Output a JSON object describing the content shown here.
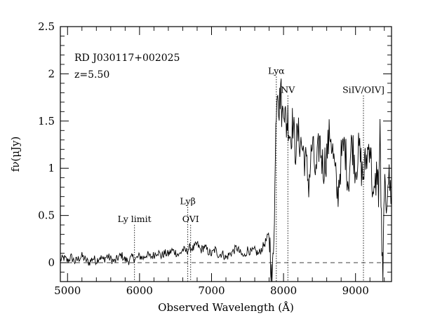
{
  "chart_data": {
    "type": "line",
    "title": "",
    "xlabel": "Observed Wavelength (Å)",
    "ylabel": "fν(μJy)",
    "xlim": [
      4900,
      9500
    ],
    "ylim": [
      -0.2,
      2.5
    ],
    "x_ticks": [
      5000,
      6000,
      7000,
      8000,
      9000
    ],
    "x_tick_labels": [
      "5000",
      "6000",
      "7000",
      "8000",
      "9000"
    ],
    "y_ticks": [
      0,
      0.5,
      1,
      1.5,
      2,
      2.5
    ],
    "y_tick_labels": [
      "0",
      "0.5",
      "1",
      "1.5",
      "2",
      "2.5"
    ],
    "grid": false,
    "annotations": [
      "RD J030117+002025",
      "z=5.50"
    ],
    "zero_level": 0,
    "spectral_lines": [
      {
        "label": "Ly limit",
        "wavelength": 5930,
        "label_y": 0.43
      },
      {
        "label": "Lyβ",
        "wavelength": 6670,
        "label_y": 0.62
      },
      {
        "label": "OVI",
        "wavelength": 6710,
        "label_y": 0.43
      },
      {
        "label": "Lyα",
        "wavelength": 7900,
        "label_y": 2.0
      },
      {
        "label": "NV",
        "wavelength": 8060,
        "label_y": 1.8
      },
      {
        "label": "SiIV/OIV]",
        "wavelength": 9110,
        "label_y": 1.8
      }
    ],
    "series": [
      {
        "x": [
          4900,
          4950,
          5000,
          5050,
          5100,
          5150,
          5200,
          5250,
          5300,
          5350,
          5400,
          5450,
          5500,
          5550,
          5600,
          5650,
          5700,
          5750,
          5800,
          5850,
          5900,
          5950,
          6000,
          6050,
          6100,
          6150,
          6200,
          6250,
          6300,
          6350,
          6400,
          6450,
          6500,
          6550,
          6600,
          6650,
          6700,
          6750,
          6800,
          6850,
          6900,
          6950,
          7000,
          7050,
          7100,
          7150,
          7200,
          7250,
          7300,
          7350,
          7400,
          7450,
          7500,
          7550,
          7600,
          7650,
          7700,
          7750,
          7800,
          7820,
          7840,
          7860,
          7880,
          7900,
          7920,
          7940,
          7960,
          7980,
          8000,
          8020,
          8040,
          8060,
          8080,
          8100,
          8130,
          8160,
          8200,
          8250,
          8300,
          8350,
          8400,
          8450,
          8500,
          8550,
          8600,
          8650,
          8700,
          8750,
          8800,
          8850,
          8900,
          8950,
          9000,
          9050,
          9100,
          9150,
          9200,
          9250,
          9300,
          9320,
          9340,
          9360,
          9380,
          9400,
          9420,
          9450,
          9500
        ],
        "y": [
          0.03,
          0.05,
          0.02,
          0.06,
          0.01,
          0.04,
          0.07,
          0.03,
          0.0,
          0.05,
          0.02,
          0.06,
          0.03,
          0.07,
          0.04,
          0.01,
          0.05,
          0.08,
          0.03,
          0.02,
          0.06,
          0.04,
          0.07,
          0.05,
          0.09,
          0.06,
          0.08,
          0.12,
          0.07,
          0.1,
          0.09,
          0.13,
          0.11,
          0.08,
          0.14,
          0.12,
          0.16,
          0.15,
          0.2,
          0.13,
          0.17,
          0.12,
          0.09,
          0.14,
          0.08,
          0.1,
          0.05,
          0.09,
          0.12,
          0.16,
          0.1,
          0.06,
          0.14,
          0.11,
          0.13,
          0.09,
          0.15,
          0.22,
          0.3,
          0.1,
          -0.3,
          0.2,
          0.8,
          1.7,
          1.95,
          1.6,
          1.9,
          1.5,
          1.75,
          1.55,
          1.45,
          1.55,
          1.4,
          1.35,
          1.5,
          1.2,
          1.35,
          1.25,
          1.1,
          0.85,
          1.25,
          0.9,
          1.3,
          1.0,
          1.15,
          1.4,
          1.05,
          0.7,
          1.1,
          1.25,
          0.85,
          1.3,
          1.0,
          1.2,
          0.9,
          1.1,
          1.3,
          0.6,
          1.0,
          0.75,
          1.35,
          0.4,
          -0.3,
          0.9,
          0.5,
          0.95,
          0.7
        ]
      }
    ]
  }
}
